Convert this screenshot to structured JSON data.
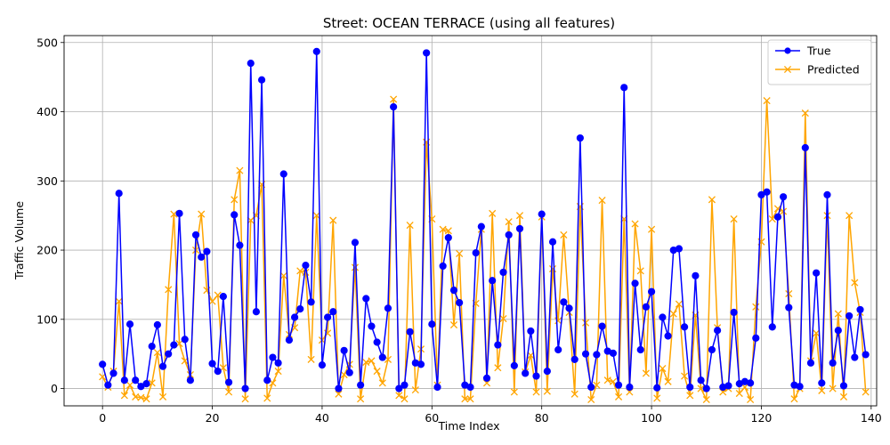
{
  "chart_data": {
    "type": "line",
    "title": "Street: OCEAN TERRACE (using all features)",
    "xlabel": "Time Index",
    "ylabel": "Traffic Volume",
    "xlim": [
      -7,
      141
    ],
    "ylim": [
      -25,
      510
    ],
    "xticks": [
      0,
      20,
      40,
      60,
      80,
      100,
      120,
      140
    ],
    "yticks": [
      0,
      100,
      200,
      300,
      400,
      500
    ],
    "grid": true,
    "legend_position": "top-right",
    "series": [
      {
        "name": "True",
        "color": "#0000ff",
        "marker": "circle",
        "values": [
          35,
          5,
          22,
          282,
          12,
          93,
          12,
          3,
          7,
          61,
          92,
          32,
          50,
          63,
          253,
          71,
          12,
          222,
          190,
          198,
          36,
          25,
          133,
          9,
          251,
          207,
          0,
          470,
          111,
          446,
          12,
          45,
          37,
          310,
          70,
          103,
          115,
          178,
          125,
          487,
          34,
          103,
          111,
          0,
          55,
          23,
          211,
          5,
          130,
          90,
          67,
          45,
          116,
          407,
          0,
          5,
          82,
          37,
          35,
          485,
          93,
          2,
          177,
          218,
          142,
          124,
          5,
          2,
          196,
          234,
          15,
          156,
          63,
          168,
          222,
          33,
          231,
          22,
          83,
          18,
          252,
          25,
          212,
          56,
          125,
          116,
          42,
          362,
          50,
          2,
          49,
          90,
          54,
          51,
          5,
          435,
          2,
          152,
          56,
          118,
          140,
          1,
          103,
          76,
          200,
          202,
          89,
          2,
          163,
          12,
          0,
          56,
          84,
          2,
          4,
          110,
          7,
          10,
          8,
          73,
          280,
          284,
          89,
          248,
          277,
          117,
          5,
          3,
          348,
          37,
          167,
          8,
          280,
          37,
          84,
          4,
          105,
          45,
          114,
          49
        ]
      },
      {
        "name": "Predicted",
        "color": "#ffa500",
        "marker": "x",
        "values": [
          17,
          2,
          25,
          126,
          -10,
          5,
          -12,
          -13,
          -15,
          8,
          52,
          -12,
          143,
          252,
          65,
          40,
          20,
          200,
          252,
          142,
          126,
          135,
          30,
          -5,
          273,
          315,
          -15,
          243,
          250,
          295,
          -14,
          8,
          25,
          163,
          78,
          88,
          170,
          168,
          42,
          250,
          70,
          80,
          243,
          -8,
          20,
          35,
          175,
          -15,
          38,
          40,
          25,
          8,
          42,
          418,
          -10,
          -15,
          236,
          -2,
          57,
          356,
          245,
          5,
          230,
          228,
          92,
          195,
          -15,
          -15,
          123,
          230,
          8,
          253,
          30,
          101,
          241,
          -5,
          250,
          24,
          48,
          -5,
          248,
          -4,
          173,
          98,
          222,
          110,
          -8,
          263,
          95,
          -16,
          5,
          272,
          12,
          10,
          -12,
          245,
          -5,
          238,
          170,
          22,
          230,
          -14,
          29,
          10,
          108,
          122,
          18,
          -10,
          106,
          0,
          -16,
          273,
          88,
          -5,
          0,
          245,
          -7,
          2,
          -16,
          118,
          212,
          416,
          245,
          260,
          256,
          137,
          -15,
          0,
          398,
          40,
          80,
          -3,
          250,
          0,
          108,
          -12,
          250,
          153,
          110,
          -5
        ]
      }
    ]
  }
}
